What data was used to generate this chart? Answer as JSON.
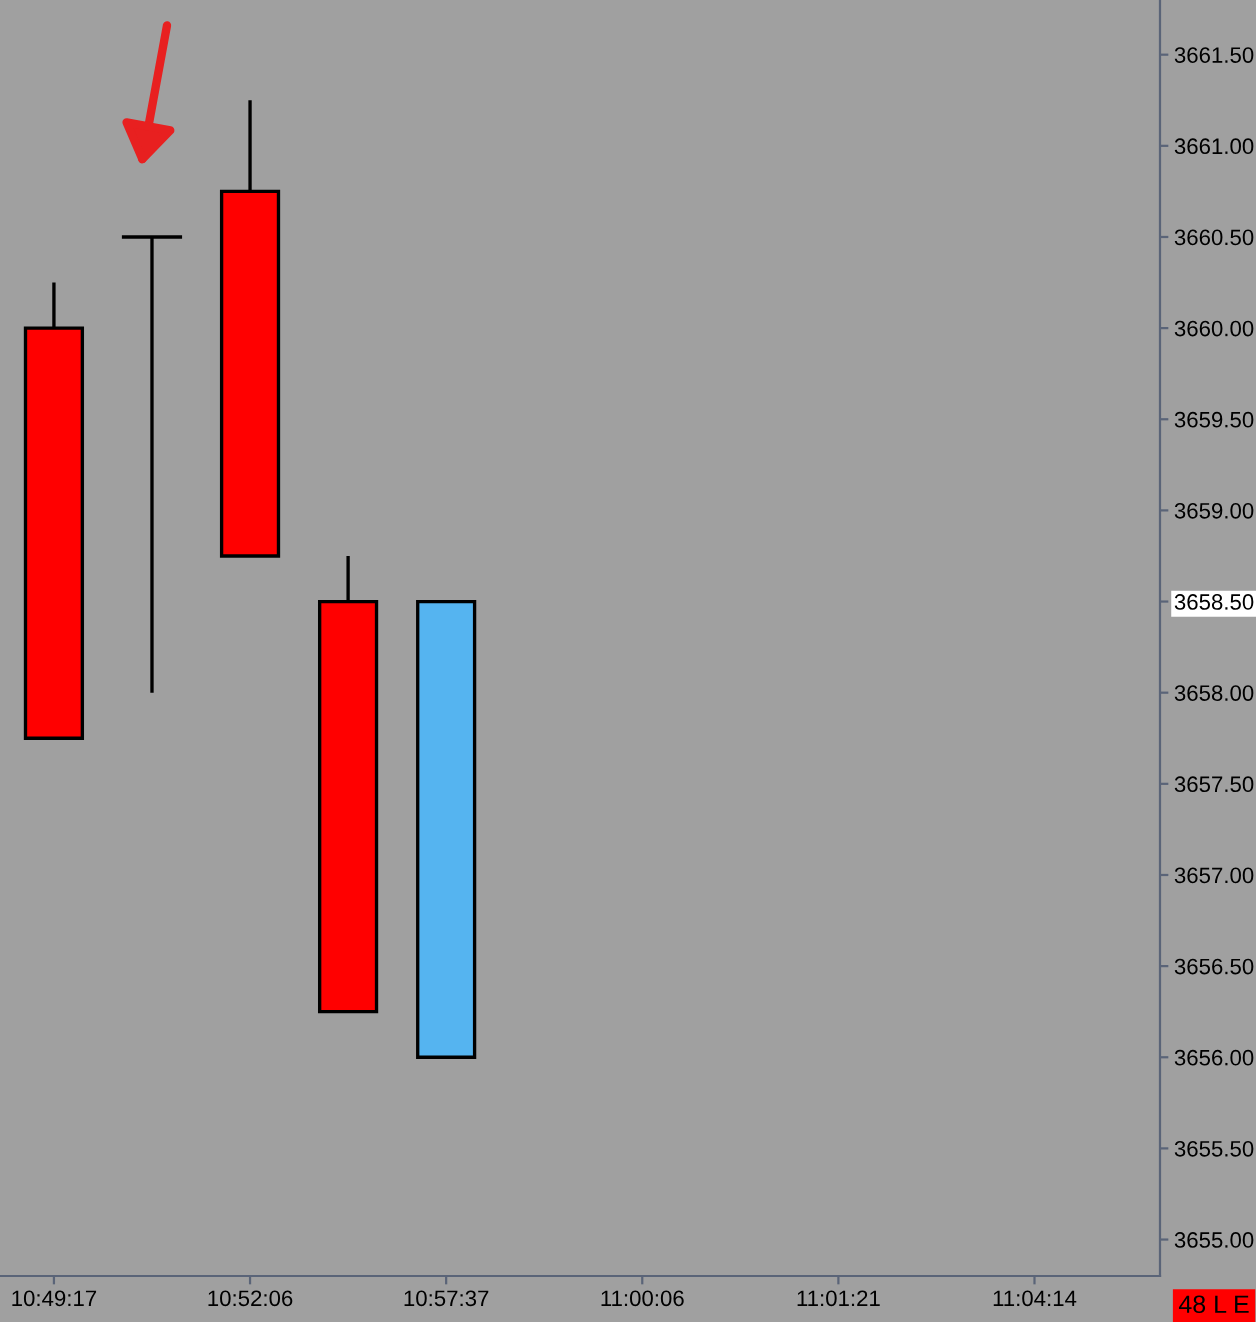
{
  "chart_data": {
    "type": "candlestick",
    "categories": [
      "10:49:17",
      null,
      "10:52:06",
      null,
      "10:57:37",
      null,
      "11:00:06",
      null,
      "11:01:21",
      null,
      "11:04:14",
      null
    ],
    "ohlc": [
      [
        3660.0,
        3660.25,
        3657.75,
        3657.75
      ],
      [
        3660.5,
        3660.5,
        3658.0,
        3660.5
      ],
      [
        3660.75,
        3661.25,
        3658.75,
        3658.75
      ],
      [
        3658.5,
        3658.75,
        3656.25,
        3656.25
      ],
      [
        3656.0,
        3658.5,
        3656.0,
        3658.5
      ],
      null,
      null,
      null,
      null,
      null,
      null,
      null
    ],
    "colors": [
      "#ff0000",
      "#000000",
      "#ff0000",
      "#ff0000",
      "#55b4f0",
      null,
      null,
      null,
      null,
      null,
      null,
      null
    ],
    "ylim": [
      3654.8,
      3661.8
    ],
    "yticks": [
      {
        "value": 3655.0,
        "label": "3655.00"
      },
      {
        "value": 3655.5,
        "label": "3655.50"
      },
      {
        "value": 3656.0,
        "label": "3656.00"
      },
      {
        "value": 3656.5,
        "label": "3656.50"
      },
      {
        "value": 3657.0,
        "label": "3657.00"
      },
      {
        "value": 3657.5,
        "label": "3657.50"
      },
      {
        "value": 3658.0,
        "label": "3658.00"
      },
      {
        "value": 3658.5,
        "label": "3658.50"
      },
      {
        "value": 3659.0,
        "label": "3659.00"
      },
      {
        "value": 3659.5,
        "label": "3659.50"
      },
      {
        "value": 3660.0,
        "label": "3660.00"
      },
      {
        "value": 3660.5,
        "label": "3660.50"
      },
      {
        "value": 3661.0,
        "label": "3661.00"
      },
      {
        "value": 3661.5,
        "label": "3661.50"
      }
    ],
    "grid": false,
    "annotations": [
      "48 L E"
    ]
  }
}
